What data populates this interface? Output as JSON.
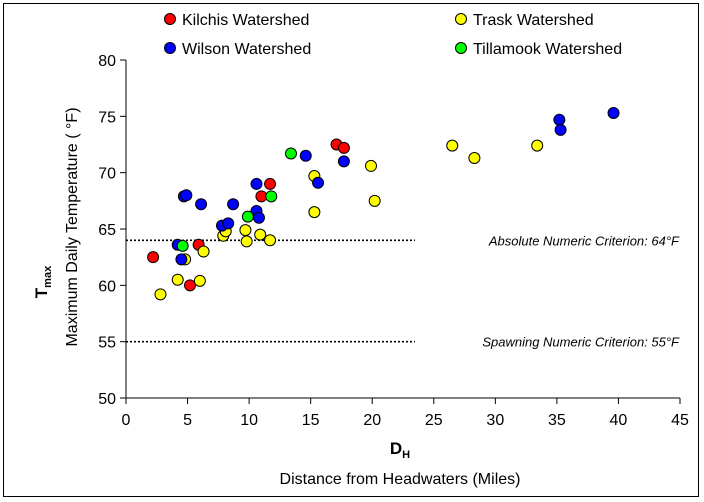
{
  "chart_data": {
    "type": "scatter",
    "xlabel_symbol": "D",
    "xlabel_symbol_sub": "H",
    "xlabel": "Distance from Headwaters (Miles)",
    "ylabel_symbol": "T",
    "ylabel_symbol_sub": "max",
    "ylabel": "Maximum Daily Temperature ( °F)",
    "xlim": [
      0,
      45
    ],
    "ylim": [
      50,
      80
    ],
    "xticks": [
      0,
      5,
      10,
      15,
      20,
      25,
      30,
      35,
      40,
      45
    ],
    "yticks": [
      50,
      55,
      60,
      65,
      70,
      75,
      80
    ],
    "grid": false,
    "legend_position": "top",
    "series": [
      {
        "name": "Kilchis Watershed",
        "color": "#ff0000",
        "points": [
          [
            2.2,
            62.5
          ],
          [
            5.2,
            60.0
          ],
          [
            5.9,
            63.6
          ],
          [
            11.0,
            67.9
          ],
          [
            11.7,
            69.0
          ],
          [
            17.1,
            72.5
          ],
          [
            17.7,
            72.2
          ]
        ]
      },
      {
        "name": "Trask Watershed",
        "color": "#ffff00",
        "points": [
          [
            2.8,
            59.2
          ],
          [
            4.2,
            60.5
          ],
          [
            4.8,
            62.3
          ],
          [
            6.0,
            60.4
          ],
          [
            6.3,
            63.0
          ],
          [
            7.9,
            64.4
          ],
          [
            8.1,
            64.8
          ],
          [
            9.7,
            64.9
          ],
          [
            9.8,
            63.9
          ],
          [
            10.9,
            64.5
          ],
          [
            11.7,
            64.0
          ],
          [
            15.3,
            69.7
          ],
          [
            15.3,
            66.5
          ],
          [
            19.9,
            70.6
          ],
          [
            20.2,
            67.5
          ],
          [
            26.5,
            72.4
          ],
          [
            28.3,
            71.3
          ],
          [
            33.4,
            72.4
          ]
        ]
      },
      {
        "name": "Wilson Watershed",
        "color": "#0000ff",
        "points": [
          [
            4.2,
            63.6
          ],
          [
            4.5,
            62.3
          ],
          [
            4.7,
            67.9
          ],
          [
            4.9,
            68.0
          ],
          [
            6.1,
            67.2
          ],
          [
            7.8,
            65.3
          ],
          [
            8.3,
            65.5
          ],
          [
            8.7,
            67.2
          ],
          [
            10.6,
            69.0
          ],
          [
            10.6,
            66.6
          ],
          [
            10.8,
            66.0
          ],
          [
            14.6,
            71.5
          ],
          [
            15.6,
            69.1
          ],
          [
            17.7,
            71.0
          ],
          [
            35.2,
            74.7
          ],
          [
            35.3,
            73.8
          ],
          [
            39.6,
            75.3
          ]
        ]
      },
      {
        "name": "Tillamook Watershed",
        "color": "#00ff00",
        "points": [
          [
            4.6,
            63.5
          ],
          [
            9.9,
            66.1
          ],
          [
            13.4,
            71.7
          ],
          [
            11.8,
            67.9
          ]
        ]
      }
    ],
    "reference_lines": [
      {
        "y": 64,
        "label": "Absolute Numeric Criterion: 64°F"
      },
      {
        "y": 55,
        "label": "Spawning Numeric Criterion: 55°F"
      }
    ]
  }
}
